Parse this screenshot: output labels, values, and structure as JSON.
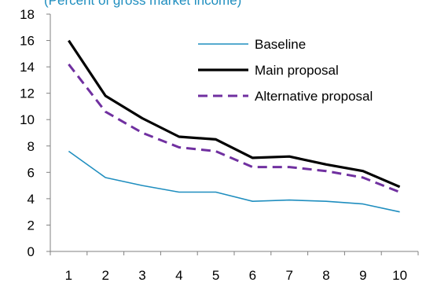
{
  "chart_data": {
    "type": "line",
    "subtitle": "(Percent of gross market income)",
    "x": [
      1,
      2,
      3,
      4,
      5,
      6,
      7,
      8,
      9,
      10
    ],
    "ylim": [
      0,
      18
    ],
    "y_ticks": [
      0,
      2,
      4,
      6,
      8,
      10,
      12,
      14,
      16,
      18
    ],
    "grid": false,
    "legend_position": "top-right",
    "series": [
      {
        "name": "Baseline",
        "color": "#1F8EBF",
        "style": "solid",
        "values": [
          7.6,
          5.6,
          5.0,
          4.5,
          4.5,
          3.8,
          3.9,
          3.8,
          3.6,
          3.0
        ]
      },
      {
        "name": "Main proposal",
        "color": "#000000",
        "style": "solid",
        "values": [
          16.0,
          11.8,
          10.1,
          8.7,
          8.5,
          7.1,
          7.2,
          6.6,
          6.1,
          4.9
        ]
      },
      {
        "name": "Alternative proposal",
        "color": "#7030A0",
        "style": "dashed",
        "values": [
          14.2,
          10.6,
          9.0,
          7.9,
          7.6,
          6.4,
          6.4,
          6.1,
          5.6,
          4.5
        ]
      }
    ]
  }
}
